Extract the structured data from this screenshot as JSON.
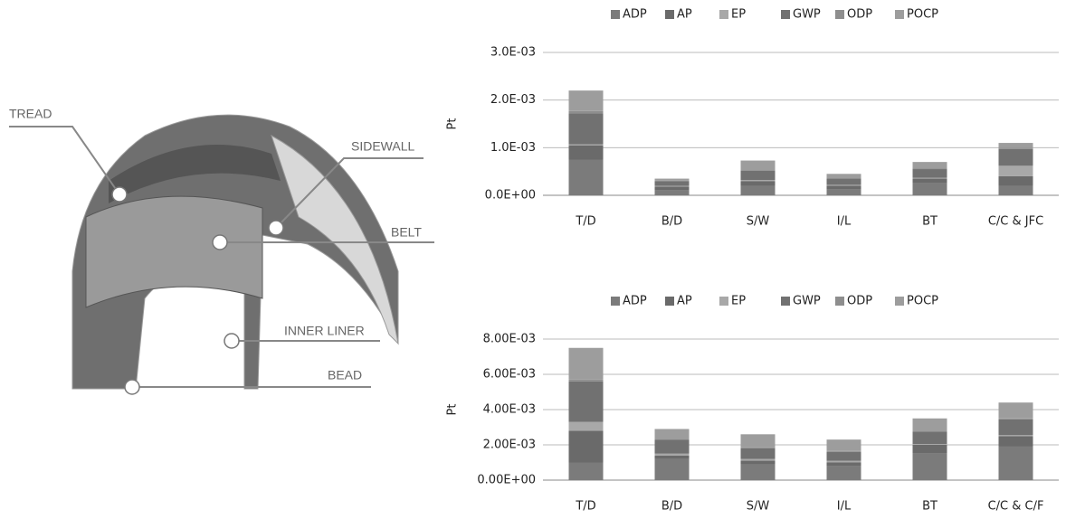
{
  "diagram": {
    "labels": [
      "TREAD",
      "SIDEWALL",
      "BELT",
      "INNER LINER",
      "BEAD"
    ]
  },
  "chart_data": [
    {
      "type": "stacked_bar",
      "ylabel": "Pt",
      "categories": [
        "T/D",
        "B/D",
        "S/W",
        "I/L",
        "BT",
        "C/C & JFC"
      ],
      "series": [
        {
          "name": "ADP",
          "color": "#7b7b7b",
          "values": [
            0.00075,
            0.0001,
            0.0002,
            0.00012,
            0.00025,
            0.0002
          ]
        },
        {
          "name": "AP",
          "color": "#6a6a6a",
          "values": [
            0.0003,
            8e-05,
            0.0001,
            8e-05,
            0.0001,
            0.0002
          ]
        },
        {
          "name": "EP",
          "color": "#a8a8a8",
          "values": [
            2e-05,
            2e-05,
            2e-05,
            2e-05,
            2e-05,
            0.00022
          ]
        },
        {
          "name": "GWP",
          "color": "#717171",
          "values": [
            0.00065,
            0.0001,
            0.0002,
            0.00013,
            0.00018,
            0.00035
          ]
        },
        {
          "name": "ODP",
          "color": "#8e8e8e",
          "values": [
            5e-05,
            1e-05,
            1e-05,
            1e-05,
            1e-05,
            3e-05
          ]
        },
        {
          "name": "POCP",
          "color": "#9d9d9d",
          "values": [
            0.00043,
            4e-05,
            0.0002,
            9e-05,
            0.00014,
            0.0001
          ]
        }
      ],
      "ylim": [
        0,
        0.003
      ],
      "yticks": [
        {
          "value": 0,
          "label": "0.0E+00"
        },
        {
          "value": 0.001,
          "label": "1.0E-03"
        },
        {
          "value": 0.002,
          "label": "2.0E-03"
        },
        {
          "value": 0.003,
          "label": "3.0E-03"
        }
      ],
      "grid": true,
      "legend": "top"
    },
    {
      "type": "stacked_bar",
      "ylabel": "Pt",
      "categories": [
        "T/D",
        "B/D",
        "S/W",
        "I/L",
        "BT",
        "C/C & C/F"
      ],
      "series": [
        {
          "name": "ADP",
          "color": "#7b7b7b",
          "values": [
            0.001,
            0.0012,
            0.0009,
            0.0008,
            0.0015,
            0.0019
          ]
        },
        {
          "name": "AP",
          "color": "#6a6a6a",
          "values": [
            0.0018,
            0.0002,
            0.0002,
            0.0002,
            0.0005,
            0.0006
          ]
        },
        {
          "name": "EP",
          "color": "#a8a8a8",
          "values": [
            0.0005,
            0.0001,
            0.0001,
            0.0001,
            5e-05,
            5e-05
          ]
        },
        {
          "name": "GWP",
          "color": "#717171",
          "values": [
            0.0023,
            0.0008,
            0.0006,
            0.0005,
            0.0007,
            0.0009
          ]
        },
        {
          "name": "ODP",
          "color": "#8e8e8e",
          "values": [
            0.0001,
            5e-05,
            5e-05,
            5e-05,
            5e-05,
            5e-05
          ]
        },
        {
          "name": "POCP",
          "color": "#9d9d9d",
          "values": [
            0.0018,
            0.00055,
            0.00075,
            0.00065,
            0.0007,
            0.0009
          ]
        }
      ],
      "ylim": [
        0,
        0.008
      ],
      "yticks": [
        {
          "value": 0,
          "label": "0.00E+00"
        },
        {
          "value": 0.002,
          "label": "2.00E-03"
        },
        {
          "value": 0.004,
          "label": "4.00E-03"
        },
        {
          "value": 0.006,
          "label": "6.00E-03"
        },
        {
          "value": 0.008,
          "label": "8.00E-03"
        }
      ],
      "grid": true,
      "legend": "top"
    }
  ]
}
